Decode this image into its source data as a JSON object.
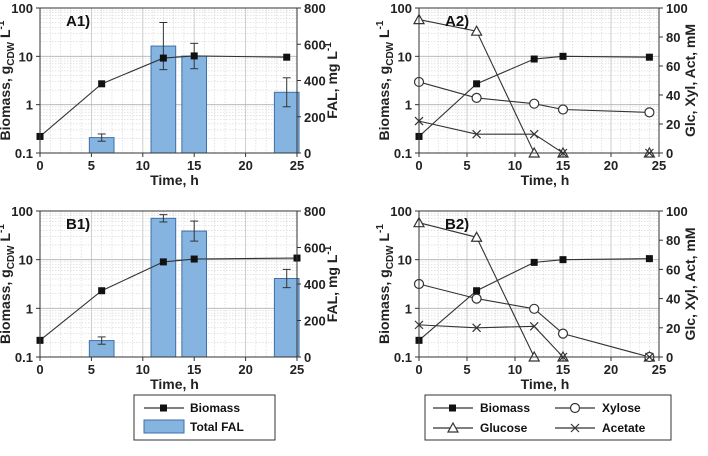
{
  "figure": {
    "x_axis_label": "Time,   h",
    "legend_left": {
      "biomass": "Biomass",
      "fal": "Total FAL"
    },
    "legend_right": {
      "biomass": "Biomass",
      "xylose": "Xylose",
      "glucose": "Glucose",
      "acetate": "Acetate"
    },
    "colors": {
      "bar_fill": "#86b4e0",
      "bar_stroke": "#3e6fa8",
      "line": "#333333",
      "grid": "#c8c8c8"
    }
  },
  "chart_data": [
    {
      "id": "A1",
      "label": "A1)",
      "type": "bar+line",
      "xlabel": "Time,   h",
      "ylabel_left": "Biomass,  gCDW L-1",
      "ylabel_right": "FAL,  mg L-1",
      "xlim": [
        0,
        25
      ],
      "xticks": [
        0,
        5,
        10,
        15,
        20,
        25
      ],
      "ylim_left": [
        0.1,
        100
      ],
      "yticks_left": [
        "0.1",
        "1",
        "10",
        "100"
      ],
      "yscale_left": "log",
      "ylim_right": [
        0,
        800
      ],
      "yticks_right": [
        0,
        200,
        400,
        600,
        800
      ],
      "biomass": {
        "x": [
          0,
          6,
          12,
          15,
          24
        ],
        "y": [
          0.22,
          2.7,
          9.2,
          10.2,
          9.6
        ]
      },
      "fal_bars": {
        "x": [
          6,
          12,
          15,
          24
        ],
        "values": [
          85,
          590,
          535,
          335
        ],
        "errors": [
          20,
          130,
          70,
          80
        ]
      }
    },
    {
      "id": "A2",
      "label": "A2)",
      "type": "line",
      "xlabel": "Time,   h",
      "ylabel_left": "Biomass,  gCDW L-1",
      "ylabel_right": "Glc, Xyl, Act,  mM",
      "xlim": [
        0,
        25
      ],
      "xticks": [
        0,
        5,
        10,
        15,
        20,
        25
      ],
      "ylim_left": [
        0.1,
        100
      ],
      "yticks_left": [
        "0.1",
        "1",
        "10",
        "100"
      ],
      "yscale_left": "log",
      "ylim_right": [
        0,
        100
      ],
      "yticks_right": [
        0,
        20,
        40,
        60,
        80,
        100
      ],
      "biomass": {
        "x": [
          0,
          6,
          12,
          15,
          24
        ],
        "y": [
          0.22,
          2.7,
          8.8,
          10.0,
          9.6
        ]
      },
      "glucose": {
        "x": [
          0,
          6,
          12,
          15,
          24
        ],
        "y": [
          92,
          84,
          0,
          0,
          0
        ]
      },
      "xylose": {
        "x": [
          0,
          6,
          12,
          15,
          24
        ],
        "y": [
          49,
          38,
          34,
          30,
          28
        ]
      },
      "acetate": {
        "x": [
          0,
          6,
          12,
          15,
          24
        ],
        "y": [
          22,
          13,
          13,
          0,
          0
        ]
      }
    },
    {
      "id": "B1",
      "label": "B1)",
      "type": "bar+line",
      "xlabel": "Time,   h",
      "ylabel_left": "Biomass,  gCDW L-1",
      "ylabel_right": "FAL,  mg L-1",
      "xlim": [
        0,
        25
      ],
      "xticks": [
        0,
        5,
        10,
        15,
        20,
        25
      ],
      "ylim_left": [
        0.1,
        100
      ],
      "yticks_left": [
        "0.1",
        "1",
        "10",
        "100"
      ],
      "yscale_left": "log",
      "ylim_right": [
        0,
        800
      ],
      "yticks_right": [
        0,
        200,
        400,
        600,
        800
      ],
      "biomass": {
        "x": [
          0,
          6,
          12,
          15,
          25
        ],
        "y": [
          0.22,
          2.3,
          9.0,
          10.3,
          10.8
        ]
      },
      "fal_bars": {
        "x": [
          6,
          12,
          15,
          24
        ],
        "values": [
          90,
          760,
          690,
          430
        ],
        "errors": [
          20,
          20,
          55,
          50
        ]
      }
    },
    {
      "id": "B2",
      "label": "B2)",
      "type": "line",
      "xlabel": "Time,   h",
      "ylabel_left": "Biomass,  gCDW L-1",
      "ylabel_right": "Glc, Xyl, Act,  mM",
      "xlim": [
        0,
        25
      ],
      "xticks": [
        0,
        5,
        10,
        15,
        20,
        25
      ],
      "ylim_left": [
        0.1,
        100
      ],
      "yticks_left": [
        "0.1",
        "1",
        "10",
        "100"
      ],
      "yscale_left": "log",
      "ylim_right": [
        0,
        100
      ],
      "yticks_right": [
        0,
        20,
        40,
        60,
        80,
        100
      ],
      "biomass": {
        "x": [
          0,
          6,
          12,
          15,
          24
        ],
        "y": [
          0.22,
          2.3,
          8.8,
          10.0,
          10.5
        ]
      },
      "glucose": {
        "x": [
          0,
          6,
          12,
          15,
          24
        ],
        "y": [
          92,
          82,
          0,
          0,
          0
        ]
      },
      "xylose": {
        "x": [
          0,
          6,
          12,
          15,
          24
        ],
        "y": [
          50,
          40,
          33,
          16,
          0
        ]
      },
      "acetate": {
        "x": [
          0,
          6,
          12,
          15,
          24
        ],
        "y": [
          22,
          20,
          21,
          0,
          0
        ]
      }
    }
  ]
}
